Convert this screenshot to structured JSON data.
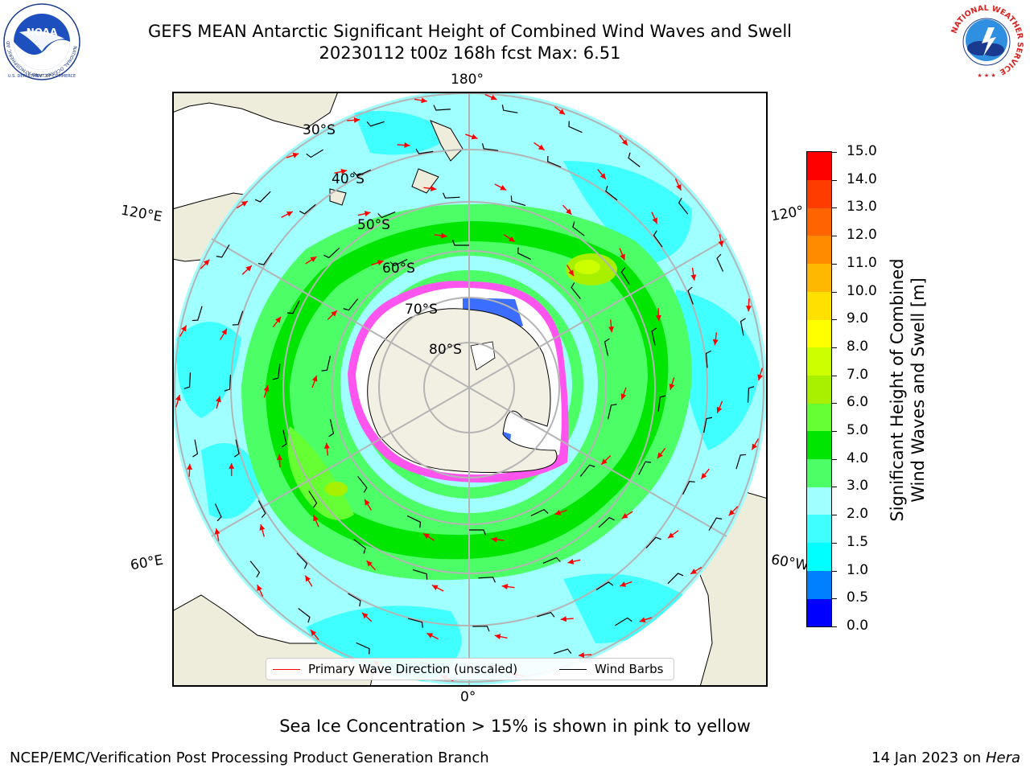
{
  "header": {
    "title_line1": "GEFS MEAN Antarctic Significant Height of Combined Wind Waves and Swell",
    "title_line2": "20230112 t00z 168h fcst   Max: 6.51"
  },
  "logos": {
    "noaa_text": "NOAA",
    "noaa_ring_text": "NATIONAL OCEANIC AND ATMOSPHERIC ADMINISTRATION",
    "noaa_ring_text_bottom": "U.S. DEPARTMENT OF COMMERCE",
    "nws_ring_text": "NATIONAL WEATHER SERVICE"
  },
  "map": {
    "projection": "south polar stereographic",
    "longitude_labels": {
      "top": "180°",
      "bottom": "0°",
      "upper_left": "120°E",
      "upper_right": "120°",
      "lower_left": "60°E",
      "lower_right": "60°W"
    },
    "latitude_labels": [
      "30°S",
      "40°S",
      "50°S",
      "60°S",
      "70°S",
      "80°S"
    ],
    "colors": {
      "land": "#eeecdb",
      "antarctica": "#f2efe3",
      "grid": "#b4b4b4",
      "wave_arrow": "#ff0000",
      "wind_barb": "#000000"
    }
  },
  "legend": {
    "wave_direction_label": "Primary Wave Direction (unscaled)",
    "wind_barbs_label": "Wind Barbs"
  },
  "colorbar": {
    "title_line1": "Significant Height of Combined",
    "title_line2": "Wind Waves and Swell [m]",
    "ticks": [
      "0.0",
      "0.5",
      "1.0",
      "1.5",
      "2.0",
      "3.0",
      "4.0",
      "5.0",
      "6.0",
      "7.0",
      "8.0",
      "9.0",
      "10.0",
      "11.0",
      "12.0",
      "13.0",
      "14.0",
      "15.0"
    ],
    "colors": [
      "#0000ff",
      "#0080ff",
      "#00ffff",
      "#40ffff",
      "#a0ffff",
      "#4dff66",
      "#00e600",
      "#66ff33",
      "#a8f000",
      "#ccff00",
      "#ffff00",
      "#ffe000",
      "#ffb800",
      "#ff8c00",
      "#ff6400",
      "#ff3c00",
      "#ff0000"
    ]
  },
  "notes": {
    "sea_ice": "Sea Ice Concentration > 15% is shown in pink to yellow"
  },
  "footer": {
    "left": "NCEP/EMC/Verification Post Processing Product Generation Branch",
    "right_prefix": "14 Jan 2023 on ",
    "right_machine": "Hera"
  }
}
